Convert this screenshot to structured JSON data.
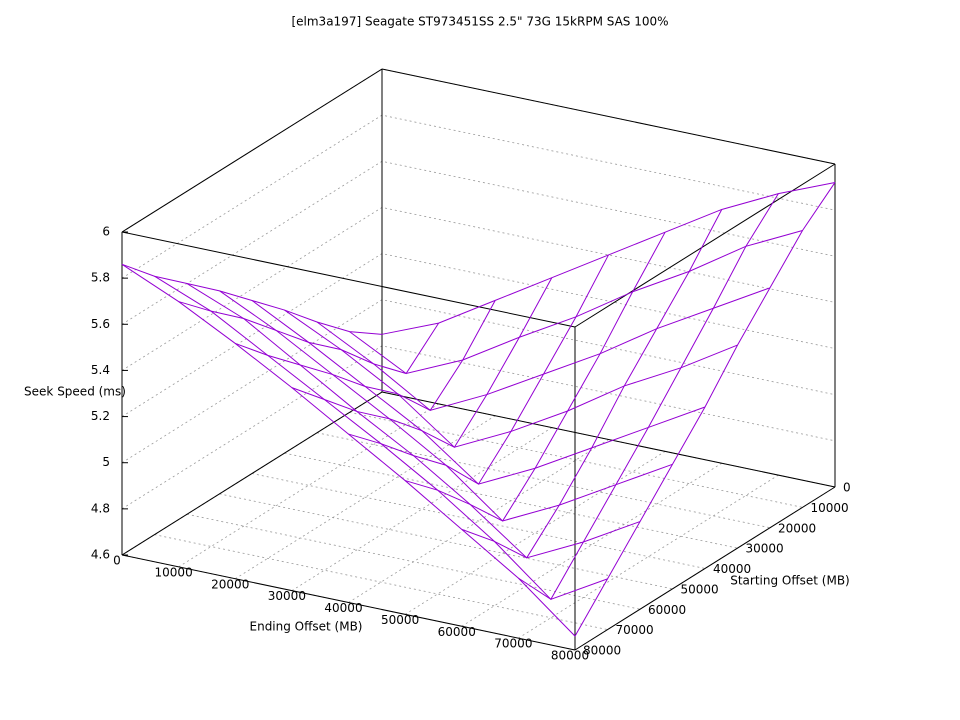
{
  "chart_data": {
    "type": "surface",
    "title": "[elm3a197] Seagate ST973451SS 2.5\" 73G 15kRPM SAS 100%",
    "xlabel": "Ending Offset (MB)",
    "ylabel": "Starting Offset (MB)",
    "zlabel": "Seek Speed (ms)",
    "x": [
      0,
      10000,
      20000,
      30000,
      40000,
      50000,
      60000,
      70000,
      80000
    ],
    "y": [
      0,
      10000,
      20000,
      30000,
      40000,
      50000,
      60000,
      70000,
      80000
    ],
    "z": [
      [
        4.85,
        4.95,
        5.1,
        5.25,
        5.4,
        5.55,
        5.7,
        5.82,
        5.92
      ],
      [
        4.95,
        4.82,
        4.93,
        5.08,
        5.22,
        5.38,
        5.52,
        5.68,
        5.8
      ],
      [
        5.08,
        4.95,
        4.8,
        4.92,
        5.06,
        5.2,
        5.36,
        5.5,
        5.64
      ],
      [
        5.22,
        5.1,
        4.96,
        4.78,
        4.9,
        5.04,
        5.2,
        5.33,
        5.48
      ],
      [
        5.35,
        5.22,
        5.08,
        4.94,
        4.76,
        4.88,
        5.02,
        5.16,
        5.3
      ],
      [
        5.48,
        5.36,
        5.22,
        5.08,
        4.93,
        4.74,
        4.86,
        5.0,
        5.14
      ],
      [
        5.6,
        5.5,
        5.35,
        5.2,
        5.06,
        4.9,
        4.72,
        4.84,
        4.98
      ],
      [
        5.72,
        5.62,
        5.48,
        5.34,
        5.2,
        5.05,
        4.88,
        4.68,
        4.82
      ],
      [
        5.86,
        5.75,
        5.62,
        5.48,
        5.33,
        5.18,
        5.02,
        4.86,
        4.66
      ]
    ],
    "xlim": [
      0,
      80000
    ],
    "ylim": [
      0,
      80000
    ],
    "zlim": [
      4.6,
      6
    ],
    "xticks": [
      0,
      10000,
      20000,
      30000,
      40000,
      50000,
      60000,
      70000,
      80000
    ],
    "yticks": [
      0,
      10000,
      20000,
      30000,
      40000,
      50000,
      60000,
      70000,
      80000
    ],
    "zticks": [
      4.6,
      4.8,
      5,
      5.2,
      5.4,
      5.6,
      5.8,
      6
    ],
    "color": "#9400d3",
    "grid": true
  }
}
